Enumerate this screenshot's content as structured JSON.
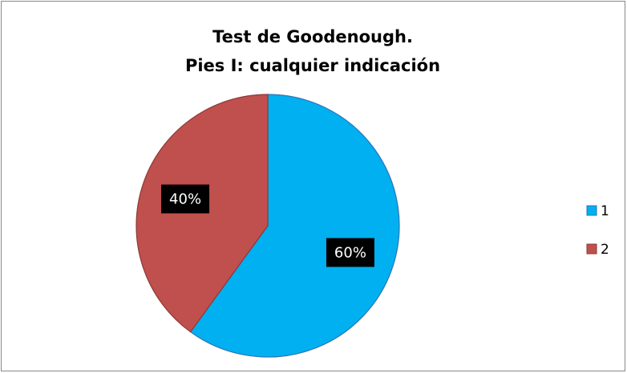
{
  "chart_data": {
    "type": "pie",
    "title": [
      "Test de Goodenough.",
      "Pies I: cualquier indicación"
    ],
    "categories": [
      "1",
      "2"
    ],
    "values": [
      60,
      40
    ],
    "value_labels": [
      "60%",
      "40%"
    ],
    "colors": [
      "#00b0f0",
      "#c0504d"
    ],
    "legend": "right"
  }
}
